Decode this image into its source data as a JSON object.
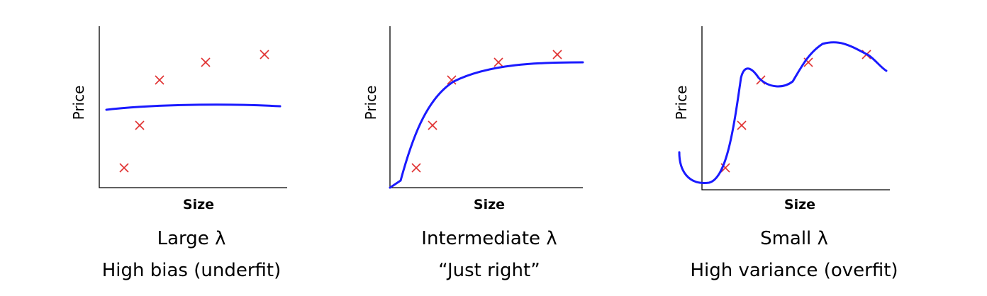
{
  "panels": [
    {
      "y_label": "Price",
      "x_label": "Size",
      "title": "Large λ",
      "caption": "High bias (underfit)"
    },
    {
      "y_label": "Price",
      "x_label": "Size",
      "title": "Intermediate λ",
      "caption": "“Just right”"
    },
    {
      "y_label": "Price",
      "x_label": "Size",
      "title": "Small λ",
      "caption": "High variance (overfit)"
    }
  ]
}
